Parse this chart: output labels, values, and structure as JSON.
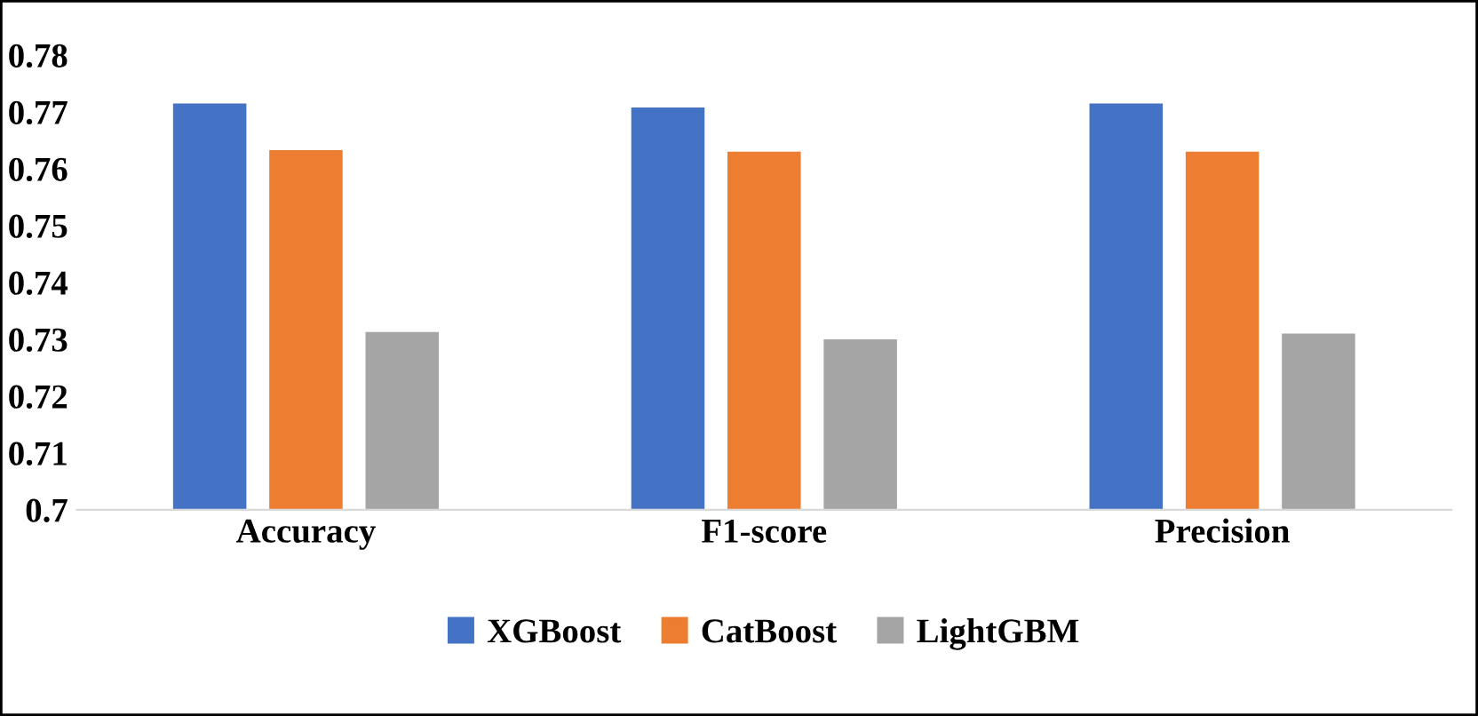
{
  "chart_data": {
    "type": "bar",
    "categories": [
      "Accuracy",
      "F1-score",
      "Precision"
    ],
    "series": [
      {
        "name": "XGBoost",
        "color": "#4472c4",
        "values": [
          0.7715,
          0.7708,
          0.7715
        ]
      },
      {
        "name": "CatBoost",
        "color": "#ed7d31",
        "values": [
          0.7633,
          0.763,
          0.763
        ]
      },
      {
        "name": "LightGBM",
        "color": "#a5a5a5",
        "values": [
          0.7313,
          0.73,
          0.731
        ]
      }
    ],
    "ylim": [
      0.7,
      0.78
    ],
    "yticks": [
      0.7,
      0.71,
      0.72,
      0.73,
      0.74,
      0.75,
      0.76,
      0.77,
      0.78
    ],
    "legend": "bottom"
  }
}
